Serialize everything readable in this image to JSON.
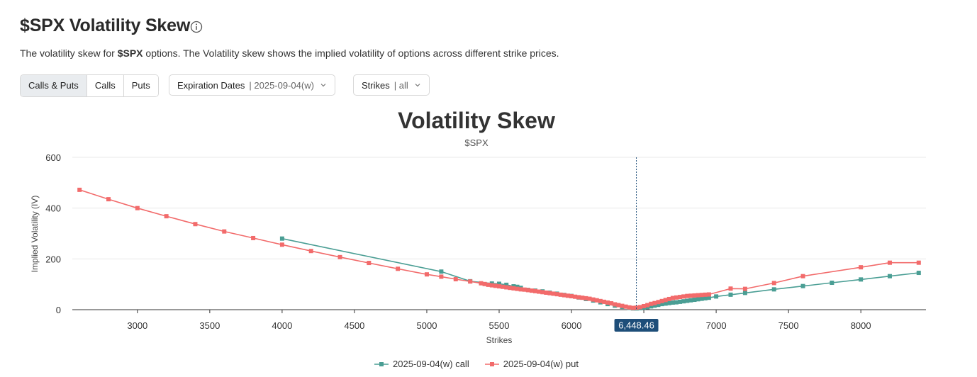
{
  "header": {
    "title": "$SPX Volatility Skew",
    "info_icon": "info-icon",
    "description_prefix": "The volatility skew for ",
    "description_ticker": "$SPX",
    "description_suffix": " options. The Volatility skew shows the implied volatility of options across different strike prices."
  },
  "controls": {
    "type_options": [
      "Calls & Puts",
      "Calls",
      "Puts"
    ],
    "type_selected": "Calls & Puts",
    "expiration": {
      "label": "Expiration Dates",
      "value": "| 2025-09-04(w)"
    },
    "strikes": {
      "label": "Strikes",
      "value": "| all"
    },
    "chevron_icon": "chevron-down-icon"
  },
  "colors": {
    "call": "#4a9e94",
    "put": "#f26b6b",
    "marker_bg": "#1e4e79",
    "grid": "#e8e8e8"
  },
  "chart_data": {
    "type": "line",
    "title": "Volatility Skew",
    "subtitle": "$SPX",
    "xlabel": "Strikes",
    "ylabel": "Implied Volatility (IV)",
    "xlim": [
      2550,
      8450
    ],
    "ylim": [
      0,
      600
    ],
    "x_ticks": [
      3000,
      3500,
      4000,
      4500,
      5000,
      5500,
      6000,
      6500,
      7000,
      7500,
      8000
    ],
    "x_tick_labels": [
      "3000",
      "3500",
      "4000",
      "4500",
      "5000",
      "5500",
      "6000",
      "6500",
      "7000",
      "7500",
      "8000"
    ],
    "y_ticks": [
      0,
      200,
      400,
      600
    ],
    "y_tick_labels": [
      "0",
      "200",
      "400",
      "600"
    ],
    "grid": true,
    "spot_marker": {
      "x": 6448.46,
      "label": "6,448.46"
    },
    "legend_position": "bottom-center",
    "series": [
      {
        "name": "2025-09-04(w) call",
        "color_key": "call",
        "x": [
          4000,
          5100,
          5300,
          5450,
          5500,
          5550,
          5600,
          5625,
          5650,
          5700,
          5750,
          5800,
          5850,
          5900,
          5950,
          6000,
          6050,
          6100,
          6150,
          6200,
          6250,
          6300,
          6350,
          6400,
          6425,
          6450,
          6475,
          6500,
          6525,
          6550,
          6575,
          6600,
          6625,
          6650,
          6675,
          6700,
          6725,
          6750,
          6775,
          6800,
          6825,
          6850,
          6875,
          6900,
          6925,
          6950,
          7000,
          7100,
          7200,
          7400,
          7600,
          7800,
          8000,
          8200,
          8400
        ],
        "values": [
          280,
          150,
          112,
          103,
          102,
          98,
          92,
          90,
          86,
          78,
          75,
          72,
          67,
          63,
          58,
          54,
          48,
          42,
          36,
          29,
          22,
          16,
          11,
          7,
          5,
          5,
          6,
          8,
          10,
          13,
          16,
          19,
          22,
          24,
          26,
          28,
          29,
          31,
          33,
          35,
          37,
          39,
          41,
          43,
          45,
          47,
          52,
          59,
          66,
          80,
          93,
          106,
          119,
          132,
          145
        ]
      },
      {
        "name": "2025-09-04(w) put",
        "color_key": "put",
        "x": [
          2600,
          2800,
          3000,
          3200,
          3400,
          3600,
          3800,
          4000,
          4200,
          4400,
          4600,
          4800,
          5000,
          5100,
          5200,
          5300,
          5375,
          5400,
          5425,
          5450,
          5475,
          5500,
          5525,
          5550,
          5575,
          5600,
          5625,
          5650,
          5675,
          5700,
          5725,
          5750,
          5775,
          5800,
          5825,
          5850,
          5875,
          5900,
          5925,
          5950,
          5975,
          6000,
          6025,
          6050,
          6075,
          6100,
          6125,
          6150,
          6175,
          6200,
          6225,
          6250,
          6275,
          6300,
          6325,
          6350,
          6375,
          6400,
          6425,
          6450,
          6475,
          6500,
          6525,
          6550,
          6575,
          6600,
          6625,
          6650,
          6675,
          6700,
          6725,
          6750,
          6775,
          6800,
          6825,
          6850,
          6875,
          6900,
          6925,
          6950,
          7100,
          7200,
          7400,
          7600,
          8000,
          8200,
          8400
        ],
        "values": [
          472,
          435,
          400,
          368,
          337,
          308,
          282,
          256,
          231,
          207,
          184,
          161,
          139,
          130,
          120,
          111,
          104,
          101,
          98,
          96,
          94,
          92,
          90,
          88,
          86,
          84,
          82,
          80,
          79,
          77,
          75,
          73,
          71,
          69,
          67,
          65,
          63,
          61,
          59,
          57,
          55,
          53,
          51,
          49,
          47,
          45,
          43,
          40,
          37,
          34,
          31,
          28,
          25,
          21,
          18,
          15,
          12,
          9,
          7,
          8,
          10,
          14,
          18,
          23,
          26,
          30,
          34,
          38,
          42,
          46,
          48,
          50,
          52,
          54,
          55,
          56,
          57,
          58,
          59,
          60,
          83,
          82,
          105,
          132,
          167,
          185,
          185
        ]
      }
    ]
  }
}
